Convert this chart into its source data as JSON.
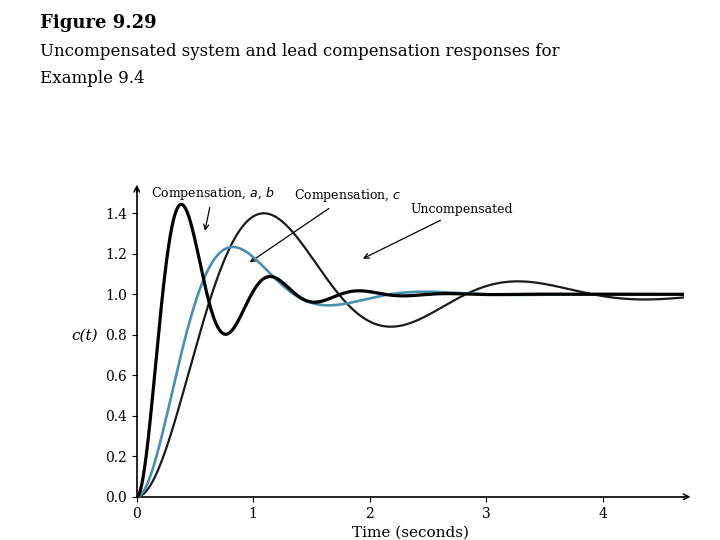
{
  "title_line1": "Figure 9.29",
  "title_line2": "Uncompensated system and lead compensation responses for",
  "title_line3": "Example 9.4",
  "xlabel": "Time (seconds)",
  "ylabel": "c(t)",
  "xlim": [
    0,
    4.7
  ],
  "ylim": [
    0,
    1.52
  ],
  "xticks": [
    0,
    1,
    2,
    3,
    4
  ],
  "yticks": [
    0,
    0.2,
    0.4,
    0.6,
    0.8,
    1.0,
    1.2,
    1.4
  ],
  "color_comp_ab": "#000000",
  "color_comp_c": "#4a8faf",
  "color_uncomp": "#1a1a1a",
  "ann_ab": "Compensation, a, b",
  "ann_c": "Compensation, c",
  "ann_u": "Uncompensated",
  "background_color": "#ffffff",
  "wn_ab": 8.5,
  "zeta_ab": 0.25,
  "wn_c": 4.2,
  "zeta_c": 0.42,
  "wn_u": 3.0,
  "zeta_u": 0.28
}
